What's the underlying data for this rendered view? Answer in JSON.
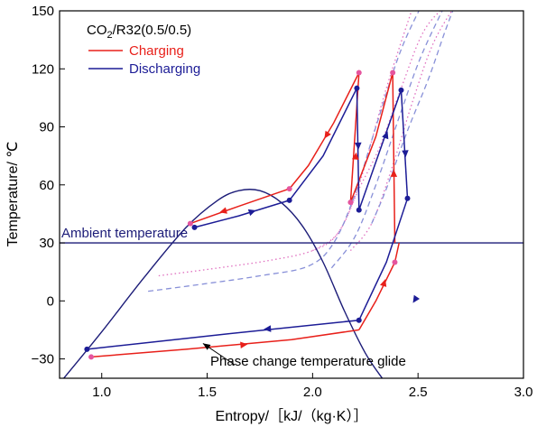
{
  "chart_data": {
    "type": "line",
    "xlabel": "Entropy/［kJ/（kg·K）］",
    "ylabel": "Temperature/ ℃",
    "xlim": [
      0.8,
      3.0
    ],
    "ylim": [
      -40,
      150
    ],
    "xticks": [
      1.0,
      1.5,
      2.0,
      2.5,
      3.0
    ],
    "yticks": [
      -30,
      0,
      30,
      60,
      90,
      120,
      150
    ],
    "xtick_labels": [
      "1.0",
      "1.5",
      "2.0",
      "2.5",
      "3.0"
    ],
    "ytick_labels": [
      "−30",
      "0",
      "30",
      "60",
      "90",
      "120",
      "150"
    ],
    "grid": false,
    "legend_position": "top-left",
    "legend_title_main": "CO",
    "legend_title_sub": "2",
    "legend_title_rest": "/R32(0.5/0.5)",
    "colors": {
      "charging": "#e8201a",
      "discharging": "#1c1c96",
      "saturation": "#1c1c78",
      "ambient": "#1c1c78",
      "marker_pink": "#e5559e",
      "dotted_pink": "#e070c0",
      "dashed_blue": "#8890d8"
    },
    "series": [
      {
        "name": "Charging",
        "style": "solid",
        "x": [
          0.95,
          2.22,
          2.39,
          2.41,
          2.39,
          2.18,
          2.38,
          2.4,
          2.22,
          2.19,
          1.89,
          1.42
        ],
        "y": [
          -29,
          -15,
          20,
          30,
          30,
          51,
          118,
          30,
          118,
          118,
          58,
          40
        ]
      },
      {
        "name": "Discharging",
        "style": "solid",
        "x": [
          1.44,
          1.89,
          2.21,
          2.22,
          2.42,
          2.45,
          2.22,
          2.21,
          0.93
        ],
        "y": [
          38,
          52,
          110,
          47,
          109,
          53,
          -10,
          -10,
          -25
        ]
      },
      {
        "name": "Saturation dome",
        "x": [
          0.82,
          1.0,
          1.2,
          1.4,
          1.55,
          1.65,
          1.75,
          1.85,
          1.95,
          2.05,
          2.15,
          2.25,
          2.33
        ],
        "y": [
          -40,
          -16,
          12,
          38,
          52,
          57,
          57,
          51,
          39,
          20,
          -5,
          -27,
          -40
        ]
      }
    ],
    "ambient_temperature": 30,
    "annotations": {
      "ambient_label": "Ambient temperature",
      "glide_label": "Phase change temperature glide"
    }
  }
}
